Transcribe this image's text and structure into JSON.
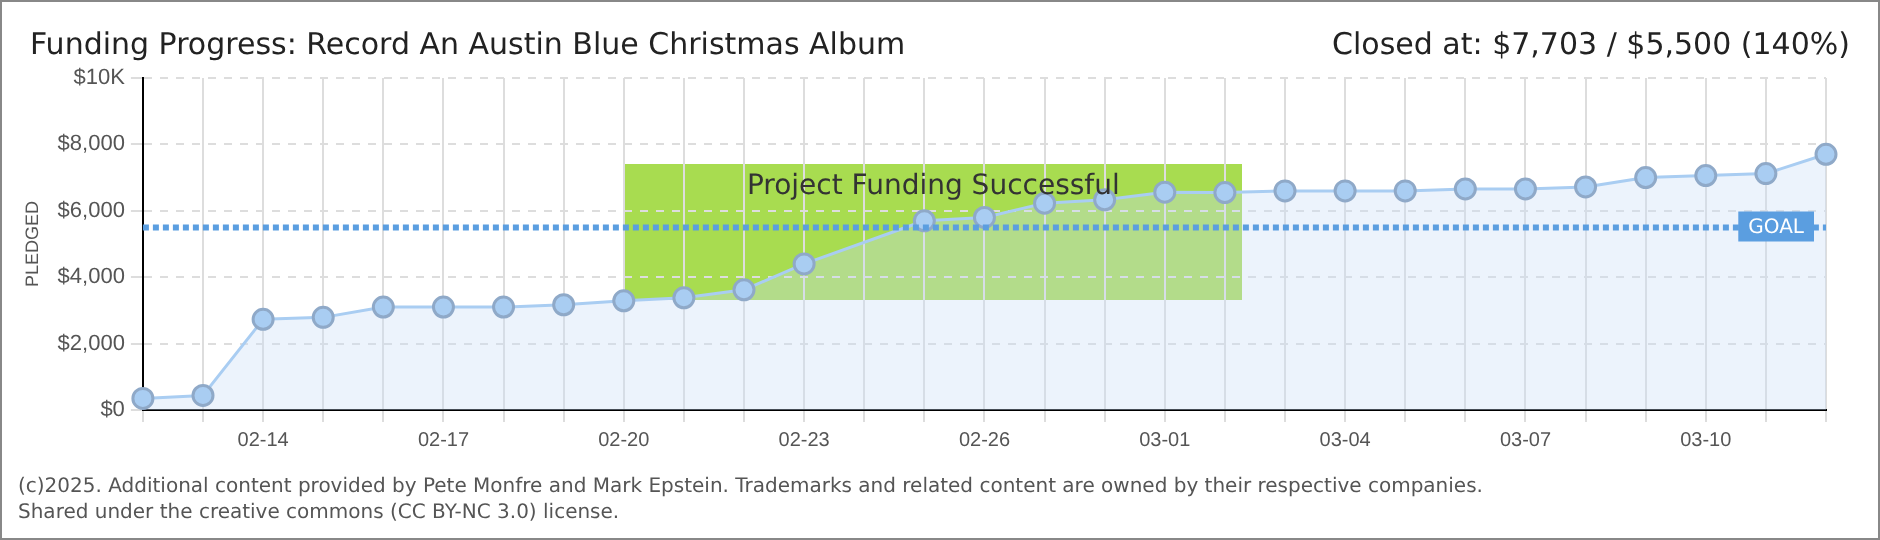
{
  "chart_data": {
    "type": "area",
    "title": "Funding Progress: Record An Austin Blue Christmas Album",
    "subtitle": "Closed at: $7,703 / $5,500 (140%)",
    "ylabel": "PLEDGED",
    "categories": [
      null,
      null,
      "02-14",
      null,
      null,
      "02-17",
      null,
      null,
      "02-20",
      null,
      null,
      "02-23",
      null,
      null,
      "02-26",
      null,
      null,
      "03-01",
      null,
      null,
      "03-04",
      null,
      null,
      "03-07",
      null,
      null,
      "03-10",
      null,
      null
    ],
    "series": [
      {
        "color": "#a9cdf2",
        "values": [
          350,
          440,
          2730,
          2790,
          3100,
          3100,
          3100,
          3170,
          3290,
          3380,
          3620,
          4400,
          null,
          5700,
          5800,
          6230,
          6330,
          6560,
          6550,
          6600,
          6600,
          6600,
          6660,
          6660,
          6720,
          7000,
          7060,
          7120,
          7703
        ]
      }
    ],
    "ylim": [
      0,
      10000
    ],
    "yticks": [
      {
        "value": 0,
        "label": "$0"
      },
      {
        "value": 2000,
        "label": "$2,000"
      },
      {
        "value": 4000,
        "label": "$4,000"
      },
      {
        "value": 6000,
        "label": "$6,000"
      },
      {
        "value": 8000,
        "label": "$8,000"
      },
      {
        "value": 10000,
        "label": "$10K"
      }
    ],
    "ref_lines": [
      {
        "axis": "y",
        "value": 5500,
        "label": "GOAL",
        "color": "#5b9ee0",
        "line_style": "dotted"
      }
    ],
    "annotations": [
      "Project Funding Successful",
      "(c)2025. Additional content provided by Pete Monfre and Mark Epstein. Trademarks and related content are owned by their respective companies.",
      "Shared under the creative commons (CC BY-NC 3.0) license."
    ],
    "grid": true,
    "legend": false,
    "marker": "circle"
  }
}
